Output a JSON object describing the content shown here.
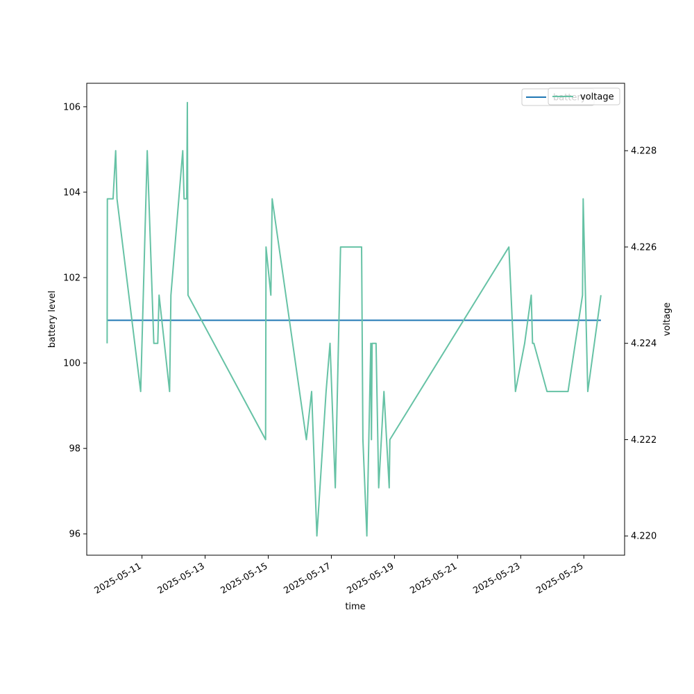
{
  "chart_data": {
    "type": "line",
    "xlabel": "time",
    "ylabel_left": "battery level",
    "ylabel_right": "voltage",
    "x_ticks": [
      "2025-05-11",
      "2025-05-13",
      "2025-05-15",
      "2025-05-17",
      "2025-05-19",
      "2025-05-21",
      "2025-05-23",
      "2025-05-25"
    ],
    "y_left_ticks": [
      "96",
      "98",
      "100",
      "102",
      "104",
      "106"
    ],
    "y_right_ticks": [
      "4.220",
      "4.222",
      "4.224",
      "4.226",
      "4.228"
    ],
    "xlim": [
      "2025-05-09 06:00",
      "2025-05-26 07:00"
    ],
    "ylim_left": [
      95.5,
      106.55
    ],
    "ylim_right": [
      4.2196,
      4.2294
    ],
    "legend": [
      {
        "name": "battery",
        "color": "#1f77b4"
      },
      {
        "name": "voltage",
        "color": "#66c2a5"
      }
    ],
    "legend_placement": "top-right",
    "grid": false,
    "series": [
      {
        "name": "battery",
        "axis": "left",
        "color": "#1f77b4",
        "points": [
          [
            "2025-05-09 21:30",
            101
          ],
          [
            "2025-05-25 13:00",
            101
          ]
        ]
      },
      {
        "name": "voltage",
        "axis": "right",
        "color": "#66c2a5",
        "points": [
          [
            "2025-05-09 21:30",
            4.224
          ],
          [
            "2025-05-09 21:40",
            4.227
          ],
          [
            "2025-05-10 02:00",
            4.227
          ],
          [
            "2025-05-10 04:00",
            4.228
          ],
          [
            "2025-05-10 05:00",
            4.227
          ],
          [
            "2025-05-10 23:00",
            4.223
          ],
          [
            "2025-05-11 04:00",
            4.228
          ],
          [
            "2025-05-11 09:00",
            4.224
          ],
          [
            "2025-05-11 12:00",
            4.224
          ],
          [
            "2025-05-11 13:00",
            4.225
          ],
          [
            "2025-05-11 21:00",
            4.223
          ],
          [
            "2025-05-11 22:00",
            4.225
          ],
          [
            "2025-05-12 07:00",
            4.228
          ],
          [
            "2025-05-12 08:00",
            4.227
          ],
          [
            "2025-05-12 10:00",
            4.227
          ],
          [
            "2025-05-12 10:30",
            4.229
          ],
          [
            "2025-05-12 11:00",
            4.225
          ],
          [
            "2025-05-14 22:00",
            4.222
          ],
          [
            "2025-05-14 22:20",
            4.226
          ],
          [
            "2025-05-15 02:00",
            4.225
          ],
          [
            "2025-05-15 03:00",
            4.227
          ],
          [
            "2025-05-16 05:00",
            4.222
          ],
          [
            "2025-05-16 09:00",
            4.223
          ],
          [
            "2025-05-16 13:00",
            4.22
          ],
          [
            "2025-05-16 20:00",
            4.223
          ],
          [
            "2025-05-16 23:00",
            4.224
          ],
          [
            "2025-05-17 03:00",
            4.221
          ],
          [
            "2025-05-17 07:00",
            4.226
          ],
          [
            "2025-05-17 23:00",
            4.226
          ],
          [
            "2025-05-18 00:00",
            4.222
          ],
          [
            "2025-05-18 03:00",
            4.22
          ],
          [
            "2025-05-18 06:00",
            4.224
          ],
          [
            "2025-05-18 06:30",
            4.222
          ],
          [
            "2025-05-18 07:00",
            4.224
          ],
          [
            "2025-05-18 10:00",
            4.224
          ],
          [
            "2025-05-18 12:00",
            4.221
          ],
          [
            "2025-05-18 16:00",
            4.223
          ],
          [
            "2025-05-18 20:00",
            4.221
          ],
          [
            "2025-05-18 20:30",
            4.222
          ],
          [
            "2025-05-22 15:00",
            4.226
          ],
          [
            "2025-05-22 20:00",
            4.223
          ],
          [
            "2025-05-23 03:00",
            4.224
          ],
          [
            "2025-05-23 08:00",
            4.225
          ],
          [
            "2025-05-23 09:00",
            4.224
          ],
          [
            "2025-05-23 10:00",
            4.224
          ],
          [
            "2025-05-23 20:00",
            4.223
          ],
          [
            "2025-05-24 12:00",
            4.223
          ],
          [
            "2025-05-24 23:00",
            4.225
          ],
          [
            "2025-05-24 23:30",
            4.227
          ],
          [
            "2025-05-25 03:00",
            4.223
          ],
          [
            "2025-05-25 13:00",
            4.225
          ]
        ]
      }
    ]
  }
}
